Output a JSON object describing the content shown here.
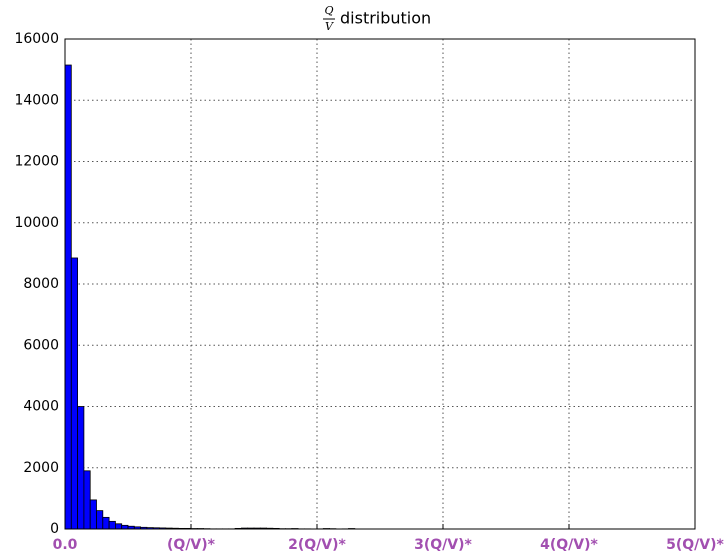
{
  "chart_data": {
    "type": "histogram",
    "title": {
      "numerator": "Q",
      "denominator": "V",
      "text": "distribution"
    },
    "bins": [
      0,
      0.05,
      0.1,
      0.15,
      0.2,
      0.25,
      0.3,
      0.35,
      0.4,
      0.45,
      0.5,
      0.55,
      0.6,
      0.65,
      0.7,
      0.75,
      0.8,
      0.85,
      0.9,
      0.95,
      1.0,
      1.05,
      1.1,
      1.15,
      1.2,
      1.25,
      1.3,
      1.35,
      1.4,
      1.45,
      1.5,
      1.55,
      1.6,
      1.65,
      1.7,
      1.75,
      1.8,
      1.85,
      1.9,
      1.95,
      2.0,
      2.05,
      2.1,
      2.15,
      2.2,
      2.25,
      2.3,
      2.35,
      2.4,
      2.45,
      2.5
    ],
    "values": [
      15150,
      8850,
      4000,
      1900,
      950,
      600,
      380,
      250,
      170,
      120,
      90,
      70,
      55,
      45,
      40,
      35,
      30,
      25,
      20,
      20,
      15,
      15,
      10,
      5,
      5,
      5,
      5,
      20,
      30,
      30,
      30,
      30,
      25,
      20,
      10,
      10,
      15,
      5,
      5,
      0,
      5,
      15,
      10,
      0,
      5,
      15,
      0,
      0,
      0,
      0
    ],
    "color": "#0000ff",
    "xlim": [
      0,
      5
    ],
    "xticks": [
      {
        "value": 0,
        "label": "0.0"
      },
      {
        "value": 1,
        "label": "(Q/V)*"
      },
      {
        "value": 2,
        "label": "2(Q/V)*"
      },
      {
        "value": 3,
        "label": "3(Q/V)*"
      },
      {
        "value": 4,
        "label": "4(Q/V)*"
      },
      {
        "value": 5,
        "label": "5(Q/V)*"
      }
    ],
    "xtick_color": "#a24fb0",
    "ylim": [
      0,
      16000
    ],
    "yticks": [
      0,
      2000,
      4000,
      6000,
      8000,
      10000,
      12000,
      14000,
      16000
    ],
    "grid": true
  }
}
